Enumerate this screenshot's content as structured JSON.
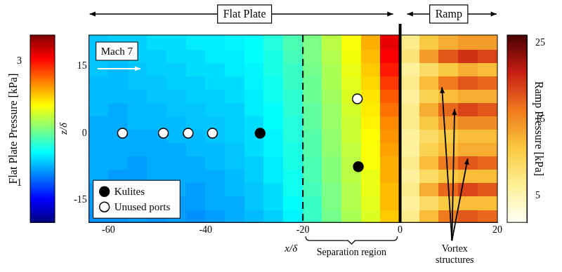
{
  "chart_data": {
    "type": "heatmap",
    "x_label": "x/δ",
    "y_label": "z/δ",
    "xlim": [
      -64,
      20
    ],
    "xticks": [
      -60,
      -40,
      -20,
      0,
      20
    ],
    "ylim": [
      -20,
      22
    ],
    "yticks": [
      -15,
      0,
      15
    ],
    "grid": false,
    "z_bins": [
      -20,
      -17,
      -14,
      -11,
      -8,
      -5,
      -2,
      1,
      4,
      7,
      10,
      13,
      16,
      19,
      22
    ],
    "regions": [
      {
        "name": "Flat Plate",
        "x_range": [
          -64,
          0
        ],
        "x_bins": [
          -64,
          -60,
          -56,
          -52,
          -48,
          -44,
          -40,
          -36,
          -32,
          -28,
          -24,
          -20,
          -16,
          -12,
          -8,
          -4,
          0
        ],
        "cells": [
          [
            1.1,
            1.1,
            1.12,
            1.1,
            1.12,
            1.1,
            1.12,
            1.15,
            1.18,
            1.22,
            1.3,
            1.45,
            1.6,
            1.75,
            1.9,
            2.2
          ],
          [
            1.12,
            1.1,
            1.12,
            1.12,
            1.12,
            1.12,
            1.15,
            1.15,
            1.2,
            1.25,
            1.32,
            1.45,
            1.62,
            1.78,
            1.92,
            2.25
          ],
          [
            1.12,
            1.12,
            1.12,
            1.1,
            1.15,
            1.12,
            1.15,
            1.18,
            1.2,
            1.25,
            1.35,
            1.48,
            1.62,
            1.78,
            1.95,
            2.25
          ],
          [
            1.15,
            1.12,
            1.12,
            1.15,
            1.15,
            1.15,
            1.15,
            1.18,
            1.22,
            1.28,
            1.35,
            1.5,
            1.65,
            1.8,
            1.95,
            2.3
          ],
          [
            1.15,
            1.15,
            1.12,
            1.15,
            1.15,
            1.15,
            1.18,
            1.2,
            1.22,
            1.28,
            1.38,
            1.5,
            1.65,
            1.8,
            2.0,
            2.3
          ],
          [
            1.15,
            1.15,
            1.15,
            1.15,
            1.15,
            1.18,
            1.18,
            1.2,
            1.25,
            1.3,
            1.38,
            1.52,
            1.68,
            1.82,
            2.0,
            2.35
          ],
          [
            1.15,
            1.15,
            1.15,
            1.15,
            1.18,
            1.18,
            1.2,
            1.22,
            1.25,
            1.3,
            1.4,
            1.52,
            1.68,
            1.85,
            2.02,
            2.4
          ],
          [
            1.15,
            1.15,
            1.18,
            1.18,
            1.18,
            1.2,
            1.2,
            1.22,
            1.25,
            1.32,
            1.4,
            1.55,
            1.7,
            1.85,
            2.05,
            2.45
          ],
          [
            1.18,
            1.15,
            1.18,
            1.18,
            1.2,
            1.2,
            1.22,
            1.22,
            1.28,
            1.32,
            1.42,
            1.55,
            1.7,
            1.88,
            2.08,
            2.55
          ],
          [
            1.18,
            1.18,
            1.18,
            1.2,
            1.2,
            1.22,
            1.22,
            1.25,
            1.28,
            1.35,
            1.42,
            1.58,
            1.72,
            1.9,
            2.1,
            2.65
          ],
          [
            1.18,
            1.18,
            1.2,
            1.2,
            1.22,
            1.22,
            1.25,
            1.25,
            1.3,
            1.35,
            1.45,
            1.58,
            1.75,
            1.92,
            2.15,
            2.8
          ],
          [
            1.2,
            1.18,
            1.2,
            1.22,
            1.22,
            1.25,
            1.25,
            1.28,
            1.3,
            1.38,
            1.45,
            1.6,
            1.75,
            1.95,
            2.2,
            2.95
          ],
          [
            1.2,
            1.2,
            1.22,
            1.22,
            1.25,
            1.25,
            1.28,
            1.28,
            1.32,
            1.38,
            1.48,
            1.62,
            1.78,
            1.98,
            2.25,
            3.1
          ],
          [
            1.2,
            1.22,
            1.22,
            1.25,
            1.25,
            1.28,
            1.28,
            1.3,
            1.32,
            1.4,
            1.5,
            1.62,
            1.8,
            2.0,
            2.3,
            3.2
          ]
        ],
        "colorbar": {
          "title": "Flat Plate Pressure [kPa]",
          "range": [
            0.7,
            3.8
          ],
          "ticks": [
            1,
            3
          ],
          "log": true
        }
      },
      {
        "name": "Ramp",
        "x_range": [
          0,
          20
        ],
        "x_bins": [
          0,
          4,
          8,
          12,
          16,
          20
        ],
        "cells": [
          [
            7,
            12,
            16,
            18,
            17
          ],
          [
            6,
            9,
            11,
            12,
            12
          ],
          [
            7,
            13,
            17,
            19,
            18
          ],
          [
            6,
            9,
            11,
            12,
            12
          ],
          [
            7,
            12,
            16,
            18,
            17
          ],
          [
            6,
            10,
            12,
            13,
            13
          ],
          [
            6,
            9,
            11,
            12,
            12
          ],
          [
            7,
            11,
            14,
            15,
            15
          ],
          [
            7,
            13,
            17,
            19,
            18
          ],
          [
            6,
            10,
            12,
            13,
            13
          ],
          [
            7,
            12,
            16,
            18,
            17
          ],
          [
            6,
            9,
            11,
            13,
            12
          ],
          [
            8,
            14,
            18,
            20,
            19
          ],
          [
            7,
            11,
            13,
            14,
            14
          ]
        ],
        "colorbar": {
          "title": "Ramp Pressure [kPa]",
          "range": [
            1.5,
            26
          ],
          "ticks": [
            5,
            15,
            25
          ],
          "log": false
        }
      }
    ],
    "markers": [
      {
        "name": "Kulites",
        "color": "#000000",
        "x": [
          -28.8,
          -8.6
        ],
        "z": [
          0,
          -7.5
        ]
      },
      {
        "name": "Unused ports",
        "color": "#ffffff",
        "x": [
          -57.1,
          -48.7,
          -43.6,
          -38.6,
          -8.8
        ],
        "z": [
          0,
          0,
          0,
          0,
          7.7
        ]
      }
    ],
    "legend": "lower left",
    "annotations": [
      {
        "text": "Mach 7"
      },
      {
        "text": "Separation region",
        "x_range": [
          -20,
          0
        ]
      },
      {
        "text": "Vortex structures",
        "points": [
          [
            8.6,
            10.3
          ],
          [
            11.2,
            5.4
          ],
          [
            13.9,
            -5.7
          ]
        ]
      }
    ]
  }
}
